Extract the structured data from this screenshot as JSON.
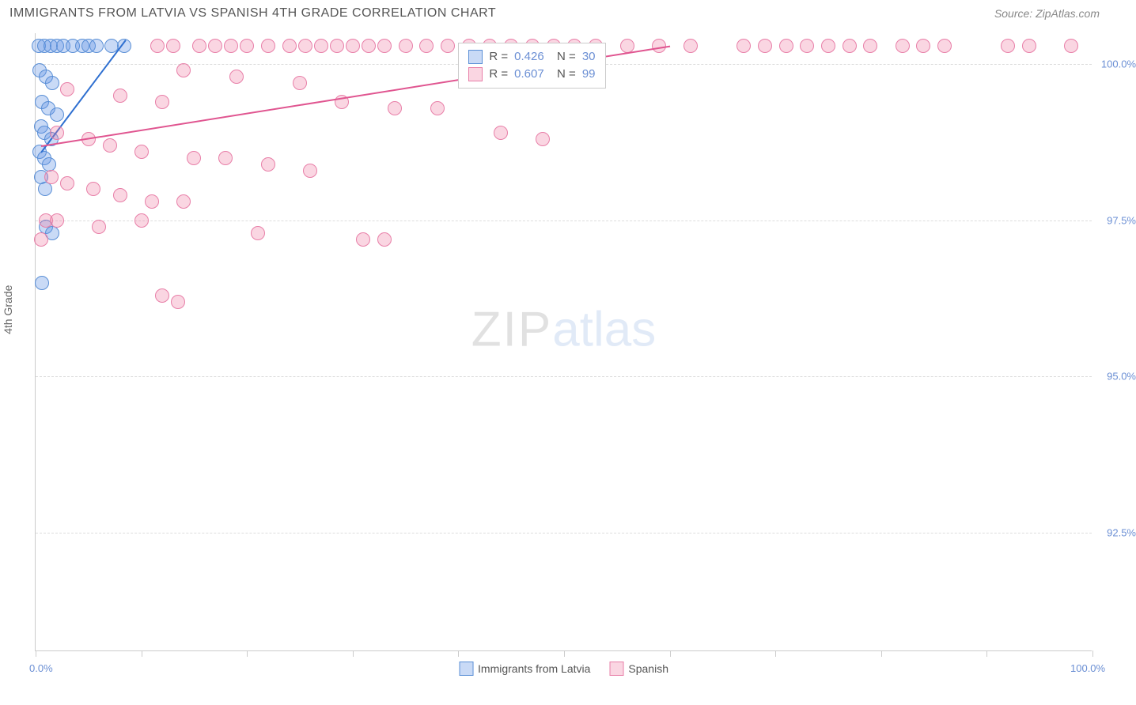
{
  "title": "IMMIGRANTS FROM LATVIA VS SPANISH 4TH GRADE CORRELATION CHART",
  "source": "Source: ZipAtlas.com",
  "y_axis_title": "4th Grade",
  "watermark": {
    "part1": "ZIP",
    "part2": "atlas"
  },
  "chart": {
    "type": "scatter",
    "xlim": [
      0,
      100
    ],
    "ylim": [
      90.6,
      100.5
    ],
    "x_ticks": [
      0,
      10,
      20,
      30,
      40,
      50,
      60,
      70,
      80,
      90,
      100
    ],
    "x_tick_labels": {
      "0": "0.0%",
      "100": "100.0%"
    },
    "y_gridlines": [
      92.5,
      95.0,
      97.5,
      100.0
    ],
    "y_tick_labels": [
      "92.5%",
      "95.0%",
      "97.5%",
      "100.0%"
    ],
    "background_color": "#ffffff",
    "grid_color": "#dddddd",
    "axis_color": "#cccccc",
    "label_color": "#6b8fd4",
    "series": [
      {
        "name": "Immigrants from Latvia",
        "color_fill": "rgba(100,150,230,0.35)",
        "color_stroke": "#5a8fd6",
        "trend_color": "#2e6fd0",
        "marker_radius": 9,
        "R": "0.426",
        "N": "30",
        "trend": {
          "x1": 0.5,
          "y1": 98.6,
          "x2": 8.5,
          "y2": 100.4
        },
        "points": [
          [
            0.3,
            100.3
          ],
          [
            0.8,
            100.3
          ],
          [
            1.4,
            100.3
          ],
          [
            2.0,
            100.3
          ],
          [
            2.6,
            100.3
          ],
          [
            3.5,
            100.3
          ],
          [
            4.4,
            100.3
          ],
          [
            5.0,
            100.3
          ],
          [
            5.8,
            100.3
          ],
          [
            7.2,
            100.3
          ],
          [
            8.4,
            100.3
          ],
          [
            0.4,
            99.9
          ],
          [
            1.0,
            99.8
          ],
          [
            1.6,
            99.7
          ],
          [
            0.6,
            99.4
          ],
          [
            1.2,
            99.3
          ],
          [
            2.0,
            99.2
          ],
          [
            0.5,
            99.0
          ],
          [
            0.8,
            98.9
          ],
          [
            1.5,
            98.8
          ],
          [
            0.4,
            98.6
          ],
          [
            0.8,
            98.5
          ],
          [
            1.3,
            98.4
          ],
          [
            0.5,
            98.2
          ],
          [
            0.9,
            98.0
          ],
          [
            1.0,
            97.4
          ],
          [
            1.6,
            97.3
          ],
          [
            0.6,
            96.5
          ]
        ]
      },
      {
        "name": "Spanish",
        "color_fill": "rgba(240,120,160,0.30)",
        "color_stroke": "#e87fa8",
        "trend_color": "#e05590",
        "marker_radius": 9,
        "R": "0.607",
        "N": "99",
        "trend": {
          "x1": 0.5,
          "y1": 98.7,
          "x2": 60,
          "y2": 100.3
        },
        "points": [
          [
            11.5,
            100.3
          ],
          [
            13,
            100.3
          ],
          [
            15.5,
            100.3
          ],
          [
            17,
            100.3
          ],
          [
            18.5,
            100.3
          ],
          [
            20,
            100.3
          ],
          [
            22,
            100.3
          ],
          [
            24,
            100.3
          ],
          [
            25.5,
            100.3
          ],
          [
            27,
            100.3
          ],
          [
            28.5,
            100.3
          ],
          [
            30,
            100.3
          ],
          [
            31.5,
            100.3
          ],
          [
            33,
            100.3
          ],
          [
            35,
            100.3
          ],
          [
            37,
            100.3
          ],
          [
            39,
            100.3
          ],
          [
            41,
            100.3
          ],
          [
            43,
            100.3
          ],
          [
            45,
            100.3
          ],
          [
            47,
            100.3
          ],
          [
            49,
            100.3
          ],
          [
            51,
            100.3
          ],
          [
            53,
            100.3
          ],
          [
            56,
            100.3
          ],
          [
            59,
            100.3
          ],
          [
            62,
            100.3
          ],
          [
            67,
            100.3
          ],
          [
            69,
            100.3
          ],
          [
            71,
            100.3
          ],
          [
            73,
            100.3
          ],
          [
            75,
            100.3
          ],
          [
            77,
            100.3
          ],
          [
            79,
            100.3
          ],
          [
            82,
            100.3
          ],
          [
            84,
            100.3
          ],
          [
            86,
            100.3
          ],
          [
            92,
            100.3
          ],
          [
            94,
            100.3
          ],
          [
            98,
            100.3
          ],
          [
            14,
            99.9
          ],
          [
            19,
            99.8
          ],
          [
            25,
            99.7
          ],
          [
            3,
            99.6
          ],
          [
            8,
            99.5
          ],
          [
            12,
            99.4
          ],
          [
            29,
            99.4
          ],
          [
            34,
            99.3
          ],
          [
            38,
            99.3
          ],
          [
            44,
            98.9
          ],
          [
            48,
            98.8
          ],
          [
            2,
            98.9
          ],
          [
            5,
            98.8
          ],
          [
            7,
            98.7
          ],
          [
            10,
            98.6
          ],
          [
            15,
            98.5
          ],
          [
            18,
            98.5
          ],
          [
            22,
            98.4
          ],
          [
            26,
            98.3
          ],
          [
            1.5,
            98.2
          ],
          [
            3,
            98.1
          ],
          [
            5.5,
            98.0
          ],
          [
            8,
            97.9
          ],
          [
            11,
            97.8
          ],
          [
            14,
            97.8
          ],
          [
            2,
            97.5
          ],
          [
            6,
            97.4
          ],
          [
            10,
            97.5
          ],
          [
            21,
            97.3
          ],
          [
            31,
            97.2
          ],
          [
            33,
            97.2
          ],
          [
            1,
            97.5
          ],
          [
            12,
            96.3
          ],
          [
            13.5,
            96.2
          ],
          [
            0.5,
            97.2
          ]
        ]
      }
    ]
  },
  "bottom_legend": [
    {
      "label": "Immigrants from Latvia",
      "fill": "rgba(100,150,230,0.35)",
      "stroke": "#5a8fd6"
    },
    {
      "label": "Spanish",
      "fill": "rgba(240,120,160,0.30)",
      "stroke": "#e87fa8"
    }
  ]
}
